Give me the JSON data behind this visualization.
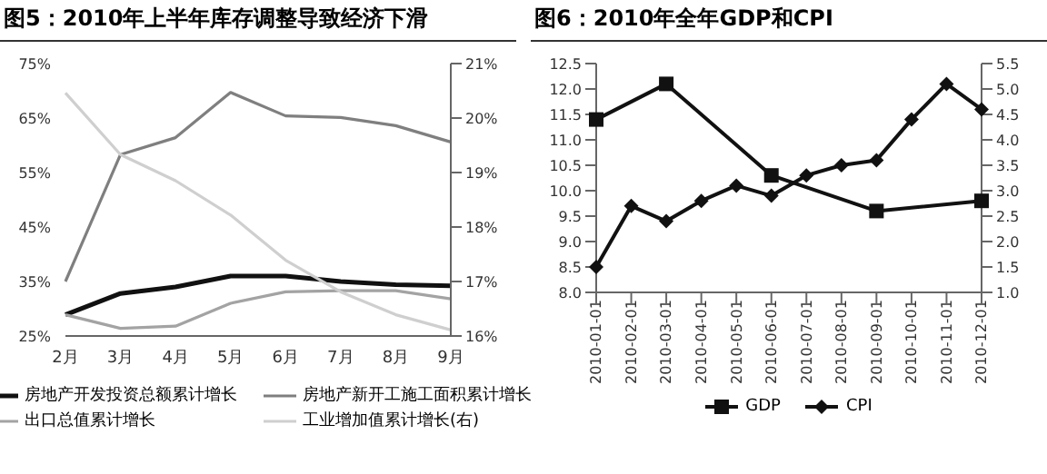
{
  "chart_data": [
    {
      "type": "line",
      "title": "图5：2010年上半年库存调整导致经济下滑",
      "categories": [
        "2月",
        "3月",
        "4月",
        "5月",
        "6月",
        "7月",
        "8月",
        "9月"
      ],
      "series": [
        {
          "name": "房地产开发投资总额累计增长",
          "color": "#111111",
          "values": [
            28.9,
            32.8,
            34,
            36,
            36,
            35,
            34.4,
            34.2
          ]
        },
        {
          "name": "房地产新开工施工面积累计增长",
          "color": "#7f7f7f",
          "values": [
            35,
            58.3,
            61.4,
            69.7,
            65.4,
            65.1,
            63.6,
            60.6
          ]
        },
        {
          "name": "出口总值累计增长",
          "color": "#a3a3a3",
          "values": [
            28.9,
            26.4,
            26.8,
            31,
            33.1,
            33.3,
            33.3,
            31.8
          ]
        },
        {
          "name": "工业增加值累计增长(右)",
          "color": "#cfcfcf",
          "axis": "y2",
          "values": [
            20.46,
            19.33,
            18.85,
            18.22,
            17.39,
            16.81,
            16.39,
            16.11
          ]
        }
      ],
      "ylim": [
        25,
        75
      ],
      "yticks": [
        {
          "value": 25,
          "label": "25%"
        },
        {
          "value": 35,
          "label": "35%"
        },
        {
          "value": 45,
          "label": "45%"
        },
        {
          "value": 55,
          "label": "55%"
        },
        {
          "value": 65,
          "label": "65%"
        },
        {
          "value": 75,
          "label": "75%"
        }
      ],
      "y2lim": [
        16,
        21
      ],
      "y2ticks": [
        {
          "value": 16,
          "label": "16%"
        },
        {
          "value": 17,
          "label": "17%"
        },
        {
          "value": 18,
          "label": "18%"
        },
        {
          "value": 19,
          "label": "19%"
        },
        {
          "value": 20,
          "label": "20%"
        },
        {
          "value": 21,
          "label": "21%"
        }
      ],
      "marker": "none",
      "legend": "bottom",
      "grid": false
    },
    {
      "type": "line",
      "title": "图6：2010年全年GDP和CPI",
      "categories": [
        "2010-01-01",
        "2010-02-01",
        "2010-03-01",
        "2010-04-01",
        "2010-05-01",
        "2010-06-01",
        "2010-07-01",
        "2010-08-01",
        "2010-09-01",
        "2010-10-01",
        "2010-11-01",
        "2010-12-01"
      ],
      "series": [
        {
          "name": "GDP",
          "color": "#111111",
          "marker": "square",
          "values": [
            11.4,
            null,
            12.1,
            null,
            null,
            10.3,
            null,
            null,
            9.6,
            null,
            null,
            9.8
          ]
        },
        {
          "name": "CPI",
          "color": "#111111",
          "marker": "diamond",
          "axis": "y2",
          "values": [
            1.5,
            2.7,
            2.4,
            2.8,
            3.1,
            2.9,
            3.3,
            3.5,
            3.6,
            4.4,
            5.1,
            4.6
          ]
        }
      ],
      "ylim": [
        8,
        12.5
      ],
      "yticks": [
        {
          "value": 8,
          "label": "8.0"
        },
        {
          "value": 8.5,
          "label": "8.5"
        },
        {
          "value": 9,
          "label": "9.0"
        },
        {
          "value": 9.5,
          "label": "9.5"
        },
        {
          "value": 10,
          "label": "10.0"
        },
        {
          "value": 10.5,
          "label": "10.5"
        },
        {
          "value": 11,
          "label": "11.0"
        },
        {
          "value": 11.5,
          "label": "11.5"
        },
        {
          "value": 12,
          "label": "12.0"
        },
        {
          "value": 12.5,
          "label": "12.5"
        }
      ],
      "y2lim": [
        1,
        5.5
      ],
      "y2ticks": [
        {
          "value": 1,
          "label": "1.0"
        },
        {
          "value": 1.5,
          "label": "1.5"
        },
        {
          "value": 2,
          "label": "2.0"
        },
        {
          "value": 2.5,
          "label": "2.5"
        },
        {
          "value": 3,
          "label": "3.0"
        },
        {
          "value": 3.5,
          "label": "3.5"
        },
        {
          "value": 4,
          "label": "4.0"
        },
        {
          "value": 4.5,
          "label": "4.5"
        },
        {
          "value": 5,
          "label": "5.0"
        },
        {
          "value": 5.5,
          "label": "5.5"
        }
      ],
      "legend": "bottom",
      "grid": false
    }
  ]
}
